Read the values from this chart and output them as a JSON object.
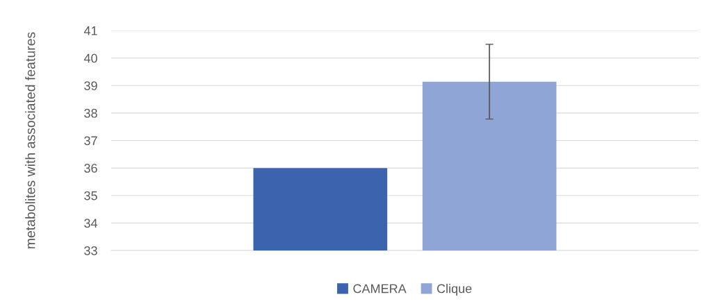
{
  "chart_data": {
    "type": "bar",
    "ylabel": "metabolites with associated features",
    "categories": [
      null
    ],
    "series": [
      {
        "name": "CAMERA",
        "color": "#3c64ae",
        "values": [
          36
        ]
      },
      {
        "name": "Clique",
        "color": "#8fa5d5",
        "values": [
          39.14
        ],
        "errors": [
          1.36
        ]
      }
    ],
    "ylim": [
      33,
      41
    ],
    "yticks": [
      33,
      34,
      35,
      36,
      37,
      38,
      39,
      40,
      41
    ],
    "grid": "y",
    "legend": "bottom"
  }
}
